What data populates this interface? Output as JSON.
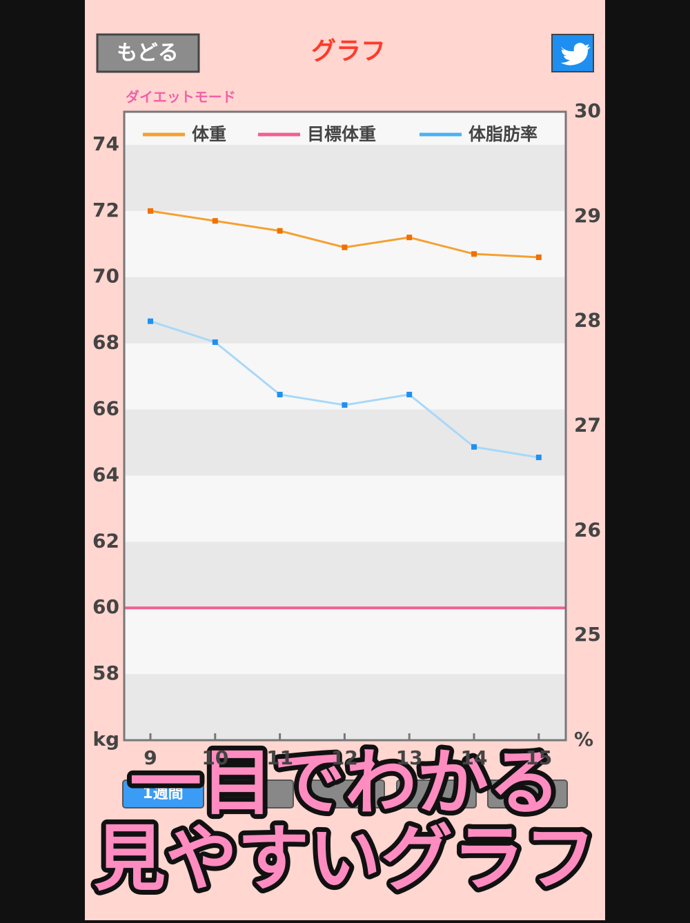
{
  "header": {
    "back_button": "もどる",
    "title": "グラフ"
  },
  "mode_label": "ダイエットモード",
  "chart_data": {
    "type": "line",
    "categories": [
      "9",
      "10",
      "11",
      "12",
      "13",
      "14",
      "15"
    ],
    "series": [
      {
        "name": "体重",
        "color": "#f5a030",
        "marker_color": "#f07000",
        "values": [
          72,
          71.7,
          71.4,
          70.9,
          71.2,
          70.7,
          70.6
        ]
      },
      {
        "name": "目標体重",
        "color": "#f06090",
        "values": [
          60,
          60,
          60,
          60,
          60,
          60,
          60
        ]
      },
      {
        "name": "体脂肪率",
        "color": "#a8d8f8",
        "marker_color": "#2090f0",
        "axis": "y2",
        "values": [
          28.0,
          27.8,
          27.3,
          27.2,
          27.3,
          26.8,
          26.7
        ]
      }
    ],
    "ylabel": "kg",
    "y2label": "%",
    "ylim": [
      56,
      75
    ],
    "yticks": [
      58,
      60,
      62,
      64,
      66,
      68,
      70,
      72,
      74
    ],
    "y2lim": [
      24,
      30
    ],
    "y2ticks": [
      25,
      26,
      27,
      28,
      29,
      30
    ],
    "grid": true,
    "legend": "top"
  },
  "period_button": "1週間",
  "caption": [
    "一目でわかる",
    "見やすいグラフ"
  ]
}
